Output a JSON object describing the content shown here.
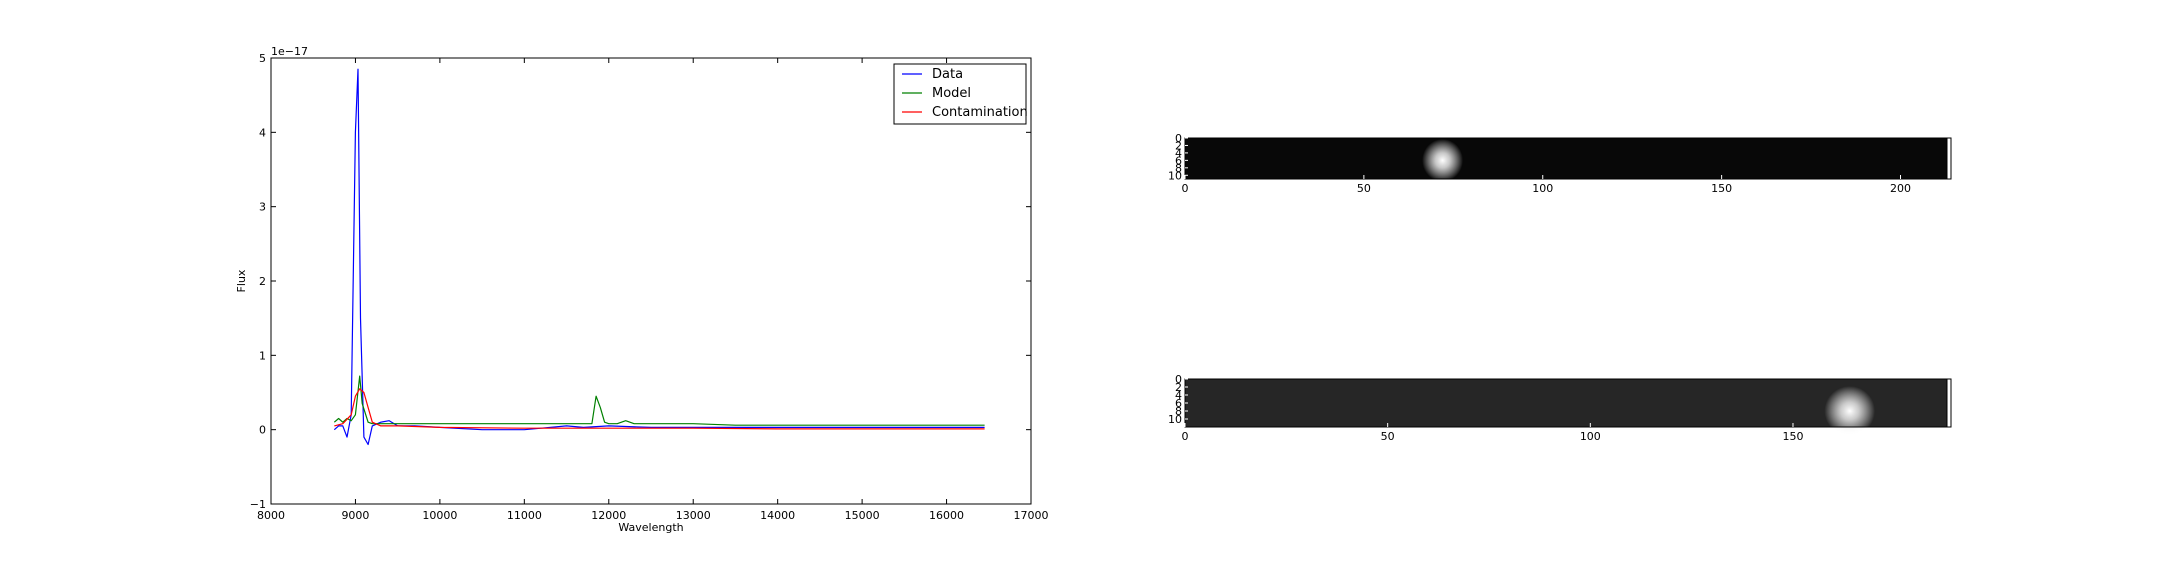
{
  "chart_data": [
    {
      "type": "line",
      "title": "",
      "xlabel": "Wavelength",
      "ylabel": "Flux",
      "offset_text": "1e−17",
      "xlim": [
        8000,
        17000
      ],
      "ylim": [
        -1,
        5
      ],
      "x_ticks": [
        8000,
        9000,
        10000,
        11000,
        12000,
        13000,
        14000,
        15000,
        16000,
        17000
      ],
      "y_ticks": [
        -1,
        0,
        1,
        2,
        3,
        4,
        5
      ],
      "x_tick_labels": [
        "8000",
        "9000",
        "10000",
        "11000",
        "12000",
        "13000",
        "14000",
        "15000",
        "16000",
        "17000"
      ],
      "y_tick_labels": [
        "−1",
        "0",
        "1",
        "2",
        "3",
        "4",
        "5"
      ],
      "legend_position": "top-right",
      "series": [
        {
          "name": "Data",
          "color": "#0000ff",
          "x": [
            8750,
            8800,
            8850,
            8900,
            8950,
            9000,
            9030,
            9060,
            9100,
            9150,
            9200,
            9300,
            9400,
            9500,
            9700,
            10000,
            10500,
            11000,
            11200,
            11500,
            11700,
            12000,
            12500,
            13000,
            13500,
            14000,
            14500,
            15000,
            15500,
            16000,
            16450
          ],
          "y": [
            0.0,
            0.05,
            0.05,
            -0.1,
            0.2,
            4.0,
            4.85,
            1.5,
            -0.1,
            -0.2,
            0.05,
            0.1,
            0.12,
            0.05,
            0.05,
            0.03,
            0.0,
            0.0,
            0.02,
            0.05,
            0.03,
            0.05,
            0.03,
            0.03,
            0.03,
            0.03,
            0.03,
            0.03,
            0.03,
            0.03,
            0.03
          ]
        },
        {
          "name": "Model",
          "color": "#008000",
          "x": [
            8750,
            8800,
            8850,
            8900,
            8950,
            9000,
            9050,
            9080,
            9150,
            9200,
            9300,
            9500,
            10000,
            10500,
            11000,
            11500,
            11800,
            11850,
            11900,
            11950,
            12000,
            12100,
            12200,
            12300,
            12500,
            13000,
            13500,
            14000,
            14500,
            15000,
            15500,
            16000,
            16450
          ],
          "y": [
            0.1,
            0.15,
            0.1,
            0.15,
            0.12,
            0.2,
            0.72,
            0.35,
            0.1,
            0.08,
            0.08,
            0.08,
            0.08,
            0.08,
            0.08,
            0.08,
            0.08,
            0.45,
            0.3,
            0.1,
            0.08,
            0.08,
            0.12,
            0.08,
            0.08,
            0.08,
            0.06,
            0.06,
            0.06,
            0.06,
            0.06,
            0.06,
            0.06
          ]
        },
        {
          "name": "Contamination",
          "color": "#ff0000",
          "x": [
            8750,
            8850,
            8950,
            9000,
            9050,
            9100,
            9150,
            9200,
            9300,
            9500,
            10000,
            11000,
            12000,
            13000,
            14000,
            15000,
            16000,
            16450
          ],
          "y": [
            0.05,
            0.08,
            0.2,
            0.45,
            0.55,
            0.5,
            0.3,
            0.1,
            0.05,
            0.05,
            0.03,
            0.02,
            0.02,
            0.02,
            0.01,
            0.01,
            0.01,
            0.01
          ]
        }
      ]
    },
    {
      "type": "heatmap",
      "title": "",
      "colormap": "gray",
      "xlim": [
        0,
        213
      ],
      "ylim": [
        0,
        11
      ],
      "x_tick_labels": [
        "0",
        "50",
        "100",
        "150",
        "200"
      ],
      "x_ticks": [
        0,
        50,
        100,
        150,
        200
      ],
      "y_tick_labels": [
        "0",
        "2",
        "4",
        "6",
        "8",
        "10"
      ],
      "y_ticks": [
        0,
        2,
        4,
        6,
        8,
        10
      ],
      "background_level": 0.03,
      "blob": {
        "x": 72,
        "y": 6,
        "peak": 1.0,
        "sigma": 2.2
      }
    },
    {
      "type": "heatmap",
      "title": "",
      "colormap": "gray",
      "xlim": [
        0,
        188
      ],
      "ylim": [
        0,
        12
      ],
      "x_tick_labels": [
        "0",
        "50",
        "100",
        "150"
      ],
      "x_ticks": [
        0,
        50,
        100,
        150
      ],
      "y_tick_labels": [
        "0",
        "2",
        "4",
        "6",
        "8",
        "10"
      ],
      "y_ticks": [
        0,
        2,
        4,
        6,
        8,
        10
      ],
      "background_level": 0.15,
      "blob": {
        "x": 164,
        "y": 8,
        "peak": 1.0,
        "sigma": 2.4
      }
    }
  ]
}
